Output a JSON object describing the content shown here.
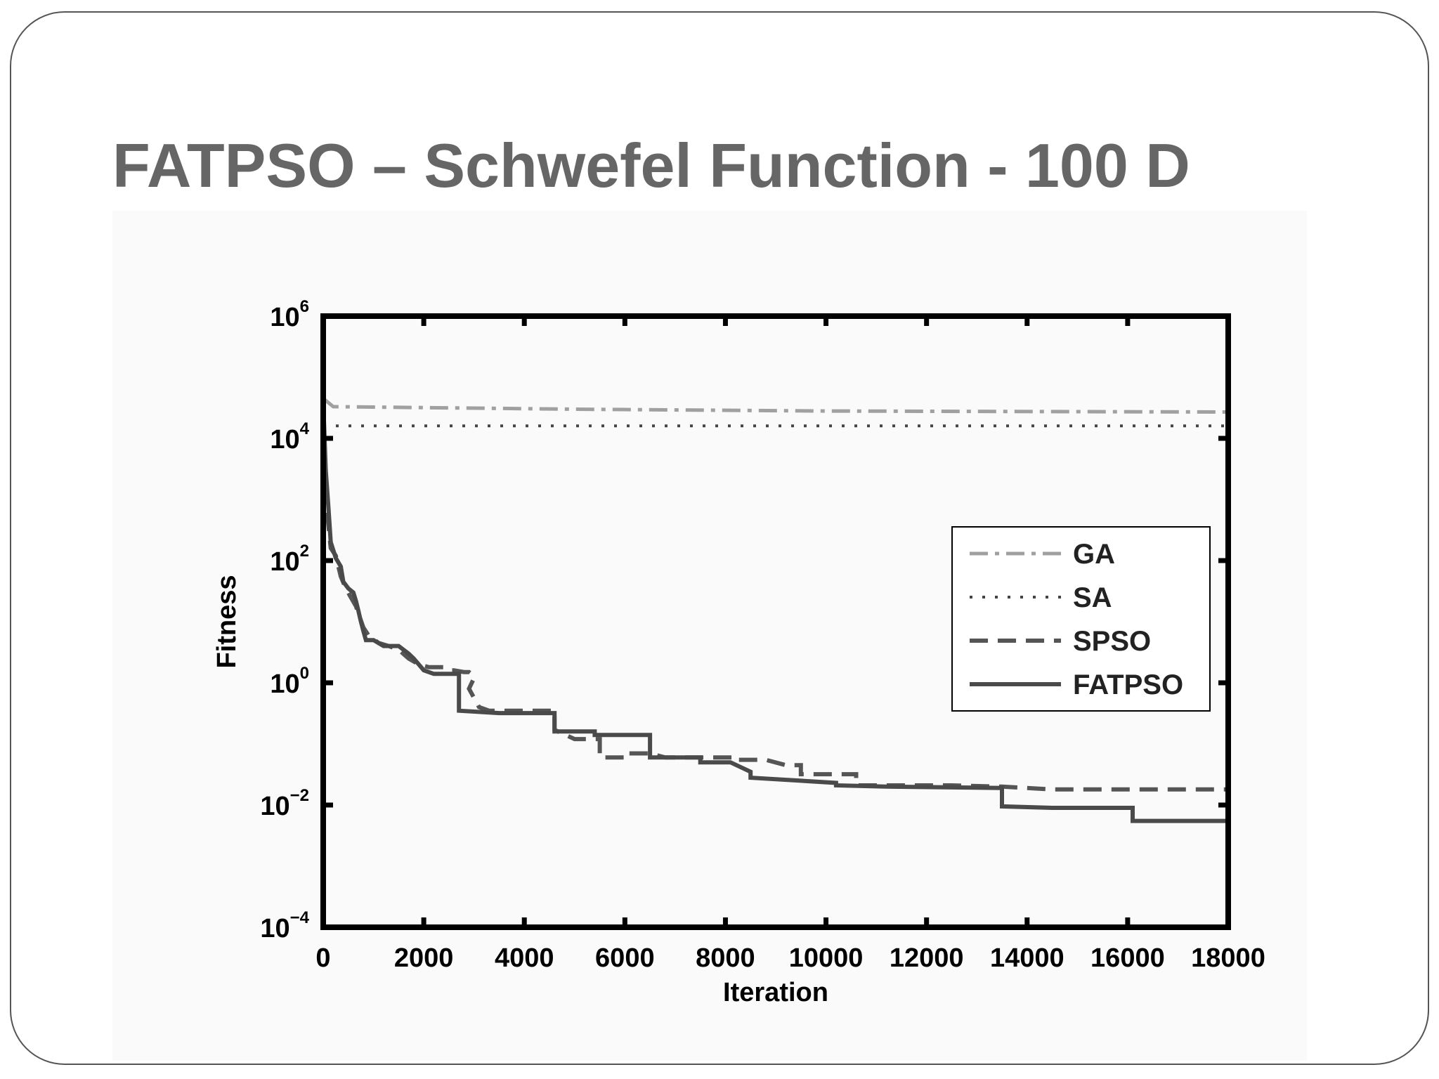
{
  "slide": {
    "title": "FATPSO – Schwefel Function - 100 D"
  },
  "chart_data": {
    "type": "line",
    "title": "",
    "xlabel": "Iteration",
    "ylabel": "Fitness",
    "xlim": [
      0,
      18000
    ],
    "ylim": [
      0.0001,
      1000000
    ],
    "yscale": "log",
    "xticks": [
      0,
      2000,
      4000,
      6000,
      8000,
      10000,
      12000,
      14000,
      16000,
      18000
    ],
    "xtick_labels": [
      "0",
      "2000",
      "4000",
      "6000",
      "8000",
      "10000",
      "12000",
      "14000",
      "16000",
      "18000"
    ],
    "yticks": [
      0.0001,
      0.01,
      1,
      100,
      10000,
      1000000
    ],
    "ytick_labels": [
      {
        "base": "10",
        "exp": "−4"
      },
      {
        "base": "10",
        "exp": "−2"
      },
      {
        "base": "10",
        "exp": "0"
      },
      {
        "base": "10",
        "exp": "2"
      },
      {
        "base": "10",
        "exp": "4"
      },
      {
        "base": "10",
        "exp": "6"
      }
    ],
    "grid": false,
    "legend_position": "center-right",
    "series": [
      {
        "name": "GA",
        "color": "#a0a0a0",
        "dash": "dashdot",
        "width": 5,
        "points": [
          [
            0,
            45000
          ],
          [
            200,
            33000
          ],
          [
            5000,
            30000
          ],
          [
            10000,
            28000
          ],
          [
            18000,
            27000
          ]
        ]
      },
      {
        "name": "SA",
        "color": "#444444",
        "dash": "dotted",
        "width": 4,
        "points": [
          [
            0,
            16000
          ],
          [
            18000,
            16000
          ]
        ]
      },
      {
        "name": "SPSO",
        "color": "#555555",
        "dash": "dashed",
        "width": 6,
        "points": [
          [
            0,
            5000
          ],
          [
            50,
            1500
          ],
          [
            100,
            400
          ],
          [
            150,
            160
          ],
          [
            250,
            120
          ],
          [
            350,
            55
          ],
          [
            450,
            35
          ],
          [
            550,
            25
          ],
          [
            650,
            18
          ],
          [
            800,
            8
          ],
          [
            900,
            6
          ],
          [
            1100,
            4.5
          ],
          [
            1300,
            4
          ],
          [
            1500,
            3.5
          ],
          [
            1700,
            2.5
          ],
          [
            1900,
            2
          ],
          [
            2100,
            1.8
          ],
          [
            2400,
            1.8
          ],
          [
            2500,
            1.6
          ],
          [
            2600,
            1.6
          ],
          [
            2800,
            1.5
          ],
          [
            2900,
            1.5
          ],
          [
            3000,
            1.3
          ],
          [
            3000,
            1.2
          ],
          [
            2900,
            0.8
          ],
          [
            3100,
            0.4
          ],
          [
            3300,
            0.35
          ],
          [
            3800,
            0.35
          ],
          [
            4600,
            0.35
          ],
          [
            4600,
            0.17
          ],
          [
            5000,
            0.12
          ],
          [
            5500,
            0.12
          ],
          [
            5500,
            0.06
          ],
          [
            6000,
            0.06
          ],
          [
            6000,
            0.07
          ],
          [
            6500,
            0.07
          ],
          [
            6800,
            0.06
          ],
          [
            8200,
            0.06
          ],
          [
            8200,
            0.055
          ],
          [
            8800,
            0.055
          ],
          [
            9200,
            0.045
          ],
          [
            9500,
            0.045
          ],
          [
            9500,
            0.032
          ],
          [
            10600,
            0.032
          ],
          [
            10600,
            0.021
          ],
          [
            12500,
            0.021
          ],
          [
            13500,
            0.02
          ],
          [
            14500,
            0.018
          ],
          [
            18000,
            0.018
          ],
          [
            18000,
            0.01
          ]
        ]
      },
      {
        "name": "FATPSO",
        "color": "#4a4a4a",
        "dash": "solid",
        "width": 6,
        "points": [
          [
            0,
            40000
          ],
          [
            50,
            3000
          ],
          [
            100,
            800
          ],
          [
            150,
            200
          ],
          [
            250,
            110
          ],
          [
            350,
            80
          ],
          [
            400,
            45
          ],
          [
            500,
            35
          ],
          [
            600,
            30
          ],
          [
            650,
            22
          ],
          [
            700,
            15
          ],
          [
            750,
            10
          ],
          [
            800,
            7
          ],
          [
            850,
            5
          ],
          [
            1000,
            5
          ],
          [
            1200,
            4
          ],
          [
            1500,
            4
          ],
          [
            1700,
            3
          ],
          [
            1800,
            2.5
          ],
          [
            1900,
            2
          ],
          [
            2000,
            1.6
          ],
          [
            2200,
            1.4
          ],
          [
            2700,
            1.4
          ],
          [
            2700,
            0.35
          ],
          [
            3500,
            0.32
          ],
          [
            4600,
            0.32
          ],
          [
            4600,
            0.16
          ],
          [
            5400,
            0.16
          ],
          [
            5400,
            0.14
          ],
          [
            6500,
            0.14
          ],
          [
            6500,
            0.06
          ],
          [
            7500,
            0.06
          ],
          [
            7500,
            0.05
          ],
          [
            8100,
            0.05
          ],
          [
            8500,
            0.035
          ],
          [
            8500,
            0.028
          ],
          [
            9500,
            0.025
          ],
          [
            10200,
            0.023
          ],
          [
            10200,
            0.021
          ],
          [
            11200,
            0.02
          ],
          [
            13500,
            0.019
          ],
          [
            13500,
            0.0095
          ],
          [
            14500,
            0.009
          ],
          [
            16100,
            0.009
          ],
          [
            16100,
            0.0055
          ],
          [
            18000,
            0.0055
          ]
        ]
      }
    ]
  }
}
